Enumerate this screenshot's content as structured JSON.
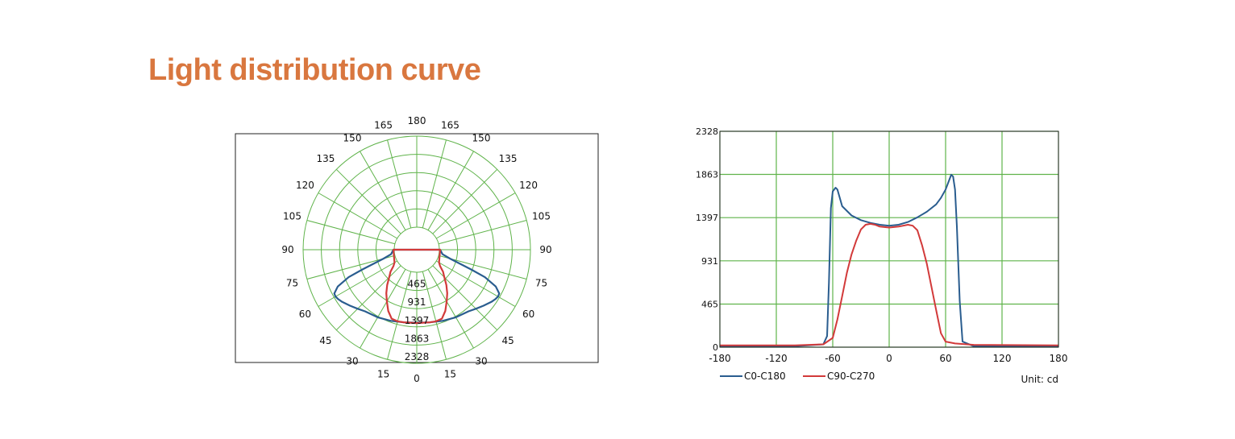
{
  "page": {
    "title": "Light distribution curve"
  },
  "chart_data": [
    {
      "type": "polar",
      "angle_labels": {
        "bottom": "0",
        "top": "180",
        "left": [
          "15",
          "30",
          "45",
          "60",
          "75",
          "90",
          "105",
          "120",
          "135",
          "150",
          "165"
        ],
        "right": [
          "15",
          "30",
          "45",
          "60",
          "75",
          "90",
          "105",
          "120",
          "135",
          "150",
          "165"
        ]
      },
      "radial_ticks": [
        "465",
        "931",
        "1397",
        "1863",
        "2328"
      ],
      "rmax": 2328,
      "grid": true,
      "series": [
        {
          "color": "#2a5d8f",
          "points": [
            [
              0,
              1290
            ],
            [
              10,
              1310
            ],
            [
              20,
              1360
            ],
            [
              30,
              1420
            ],
            [
              40,
              1480
            ],
            [
              45,
              1560
            ],
            [
              50,
              1650
            ],
            [
              55,
              1750
            ],
            [
              58,
              1800
            ],
            [
              60,
              1820
            ],
            [
              62,
              1810
            ],
            [
              65,
              1650
            ],
            [
              68,
              1300
            ],
            [
              70,
              900
            ],
            [
              75,
              300
            ],
            [
              80,
              90
            ],
            [
              90,
              20
            ]
          ]
        },
        {
          "color": "#d23a3a",
          "points": [
            [
              0,
              1300
            ],
            [
              10,
              1310
            ],
            [
              15,
              1320
            ],
            [
              20,
              1300
            ],
            [
              25,
              1150
            ],
            [
              30,
              950
            ],
            [
              35,
              780
            ],
            [
              40,
              600
            ],
            [
              45,
              420
            ],
            [
              50,
              300
            ],
            [
              55,
              150
            ],
            [
              60,
              80
            ],
            [
              70,
              40
            ],
            [
              90,
              20
            ]
          ]
        }
      ]
    },
    {
      "type": "line",
      "unit_label": "Unit: cd",
      "xlim": [
        -180,
        180
      ],
      "ylim": [
        0,
        2328
      ],
      "x_ticks": [
        "-180",
        "-120",
        "-60",
        "0",
        "60",
        "120",
        "180"
      ],
      "y_ticks": [
        "0",
        "465",
        "931",
        "1397",
        "1863",
        "2328"
      ],
      "grid": true,
      "legend": "bottom-left",
      "series": [
        {
          "name": "C0-C180",
          "color": "#2a5d8f",
          "x": [
            -180,
            -100,
            -70,
            -66,
            -64,
            -62,
            -60,
            -57,
            -55,
            -50,
            -40,
            -30,
            -20,
            -10,
            0,
            10,
            20,
            30,
            40,
            50,
            55,
            60,
            63,
            66,
            68,
            70,
            72,
            75,
            78,
            90,
            180
          ],
          "y": [
            10,
            10,
            30,
            120,
            700,
            1500,
            1680,
            1720,
            1700,
            1520,
            1420,
            1370,
            1340,
            1320,
            1310,
            1320,
            1350,
            1400,
            1460,
            1540,
            1610,
            1700,
            1780,
            1860,
            1840,
            1700,
            1300,
            500,
            60,
            10,
            10
          ]
        },
        {
          "name": "C90-C270",
          "color": "#d23a3a",
          "x": [
            -180,
            -100,
            -70,
            -60,
            -55,
            -50,
            -45,
            -40,
            -35,
            -30,
            -25,
            -20,
            -15,
            -10,
            0,
            10,
            20,
            25,
            30,
            35,
            40,
            45,
            50,
            55,
            60,
            70,
            90,
            180
          ],
          "y": [
            20,
            20,
            30,
            100,
            300,
            550,
            800,
            1000,
            1150,
            1270,
            1320,
            1330,
            1320,
            1300,
            1290,
            1300,
            1320,
            1310,
            1260,
            1100,
            900,
            650,
            400,
            150,
            60,
            40,
            25,
            20
          ]
        }
      ]
    }
  ]
}
